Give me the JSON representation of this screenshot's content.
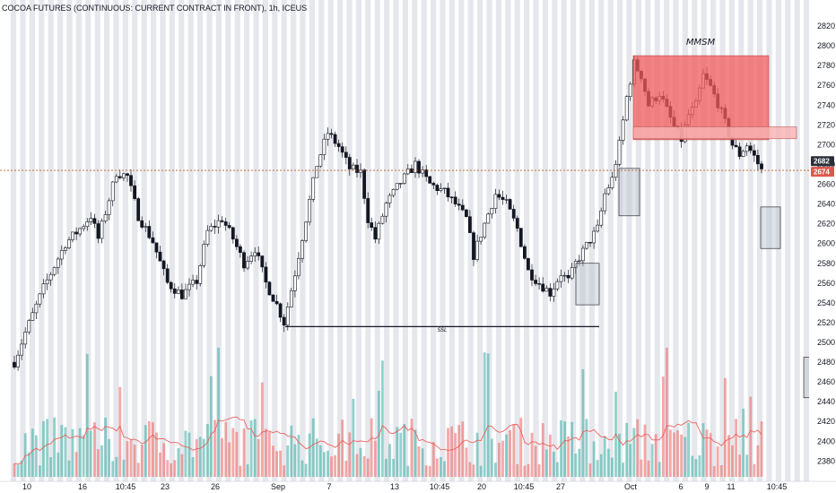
{
  "chart_data": {
    "type": "candlestick",
    "title": "COCOA FUTURES (CONTINUOUS: CURRENT CONTRACT IN FRONT), 1h, ICEUS",
    "y_ticks": [
      2380,
      2400,
      2420,
      2440,
      2460,
      2480,
      2500,
      2520,
      2540,
      2560,
      2580,
      2600,
      2620,
      2640,
      2660,
      2680,
      2700,
      2720,
      2740,
      2760,
      2780,
      2800,
      2820
    ],
    "ylim": [
      2364,
      2830
    ],
    "x_tick_labels": [
      "10",
      "16",
      "10:45",
      "23",
      "26",
      "Sep",
      "7",
      "13",
      "10:45",
      "20",
      "10:45",
      "27",
      "Oct",
      "6",
      "9",
      "11",
      "10:45"
    ],
    "price_path": [
      {
        "t": 0,
        "p": 2480
      },
      {
        "t": 3,
        "p": 2510
      },
      {
        "t": 8,
        "p": 2555
      },
      {
        "t": 14,
        "p": 2600
      },
      {
        "t": 18,
        "p": 2615
      },
      {
        "t": 21,
        "p": 2628
      },
      {
        "t": 23,
        "p": 2605
      },
      {
        "t": 26,
        "p": 2645
      },
      {
        "t": 28,
        "p": 2672
      },
      {
        "t": 31,
        "p": 2668
      },
      {
        "t": 34,
        "p": 2628
      },
      {
        "t": 38,
        "p": 2602
      },
      {
        "t": 42,
        "p": 2560
      },
      {
        "t": 46,
        "p": 2548
      },
      {
        "t": 50,
        "p": 2562
      },
      {
        "t": 53,
        "p": 2612
      },
      {
        "t": 57,
        "p": 2625
      },
      {
        "t": 60,
        "p": 2605
      },
      {
        "t": 63,
        "p": 2580
      },
      {
        "t": 66,
        "p": 2595
      },
      {
        "t": 69,
        "p": 2560
      },
      {
        "t": 72,
        "p": 2538
      },
      {
        "t": 74,
        "p": 2520
      },
      {
        "t": 77,
        "p": 2570
      },
      {
        "t": 80,
        "p": 2625
      },
      {
        "t": 83,
        "p": 2680
      },
      {
        "t": 86,
        "p": 2712
      },
      {
        "t": 89,
        "p": 2698
      },
      {
        "t": 92,
        "p": 2676
      },
      {
        "t": 95,
        "p": 2672
      },
      {
        "t": 97,
        "p": 2625
      },
      {
        "t": 99,
        "p": 2605
      },
      {
        "t": 102,
        "p": 2640
      },
      {
        "t": 106,
        "p": 2662
      },
      {
        "t": 110,
        "p": 2680
      },
      {
        "t": 114,
        "p": 2660
      },
      {
        "t": 118,
        "p": 2652
      },
      {
        "t": 121,
        "p": 2640
      },
      {
        "t": 124,
        "p": 2625
      },
      {
        "t": 126,
        "p": 2588
      },
      {
        "t": 129,
        "p": 2620
      },
      {
        "t": 132,
        "p": 2650
      },
      {
        "t": 135,
        "p": 2640
      },
      {
        "t": 138,
        "p": 2615
      },
      {
        "t": 141,
        "p": 2572
      },
      {
        "t": 144,
        "p": 2560
      },
      {
        "t": 147,
        "p": 2550
      },
      {
        "t": 150,
        "p": 2570
      },
      {
        "t": 152,
        "p": 2562
      },
      {
        "t": 154,
        "p": 2580
      },
      {
        "t": 157,
        "p": 2598
      },
      {
        "t": 160,
        "p": 2615
      },
      {
        "t": 162,
        "p": 2650
      },
      {
        "t": 164,
        "p": 2665
      },
      {
        "t": 166,
        "p": 2700
      },
      {
        "t": 168,
        "p": 2748
      },
      {
        "t": 170,
        "p": 2782
      },
      {
        "t": 172,
        "p": 2770
      },
      {
        "t": 174,
        "p": 2740
      },
      {
        "t": 177,
        "p": 2752
      },
      {
        "t": 179,
        "p": 2735
      },
      {
        "t": 181,
        "p": 2718
      },
      {
        "t": 183,
        "p": 2705
      },
      {
        "t": 185,
        "p": 2730
      },
      {
        "t": 187,
        "p": 2740
      },
      {
        "t": 189,
        "p": 2770
      },
      {
        "t": 191,
        "p": 2758
      },
      {
        "t": 193,
        "p": 2742
      },
      {
        "t": 195,
        "p": 2722
      },
      {
        "t": 197,
        "p": 2700
      },
      {
        "t": 199,
        "p": 2690
      },
      {
        "t": 201,
        "p": 2700
      },
      {
        "t": 203,
        "p": 2688
      },
      {
        "t": 205,
        "p": 2674
      }
    ],
    "dashed_levels": [
      2674
    ],
    "price_badges": [
      {
        "value": 2682,
        "label": "2682",
        "color": "#2a2e39"
      },
      {
        "value": 2674,
        "label": "2674",
        "color": "#e0574f"
      }
    ],
    "annotations": [
      {
        "type": "zone",
        "name": "mmsm-zone",
        "color": "#f05b5b",
        "y_from": 2705,
        "y_to": 2790
      },
      {
        "type": "zone",
        "name": "mmsm-shelf",
        "color": "#f7b2b2",
        "y_from": 2706,
        "y_to": 2718
      },
      {
        "type": "box",
        "name": "consolidation-box-left",
        "y_from": 2538,
        "y_to": 2580
      },
      {
        "type": "box",
        "name": "breakout-box",
        "y_from": 2628,
        "y_to": 2676
      },
      {
        "type": "box",
        "name": "right-gray-box-upper",
        "y_from": 2595,
        "y_to": 2637
      },
      {
        "type": "box",
        "name": "right-gray-box-lower",
        "y_from": 2444,
        "y_to": 2485
      },
      {
        "type": "line",
        "name": "ssl-line",
        "y": 2516
      }
    ],
    "mmsm_label": "MMSM",
    "ssl_label": "SSL",
    "colors": {
      "up": "#26a69a",
      "down": "#ef5350",
      "candle": "#131722",
      "session": "#cfd3dc",
      "level": "#b0602d"
    }
  }
}
